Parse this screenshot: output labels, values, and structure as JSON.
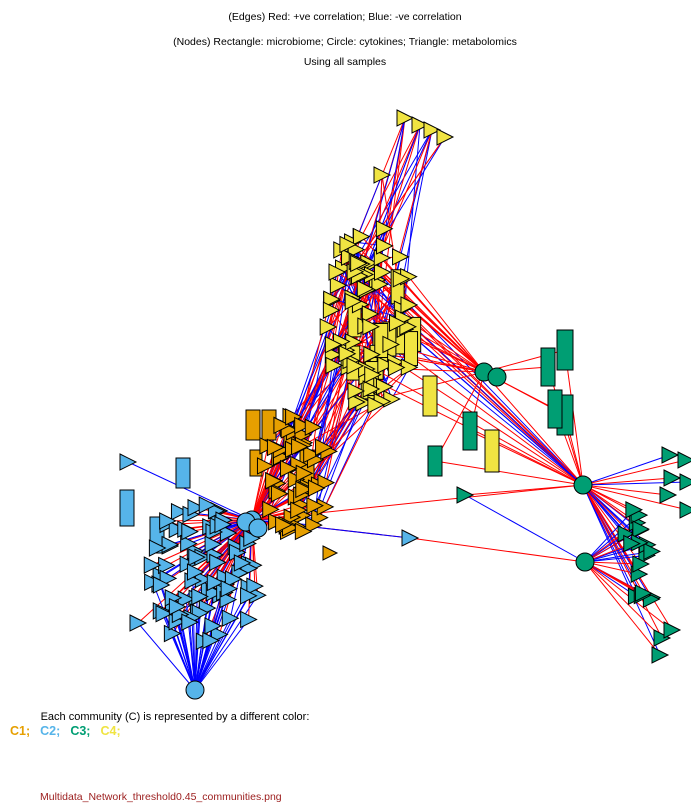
{
  "header": {
    "lines": [
      "(Edges) Red: +ve correlation; Blue: -ve correlation",
      "(Nodes) Rectangle: microbiome; Circle: cytokines; Triangle: metabolomics",
      "Using all samples"
    ]
  },
  "legend": {
    "caption": "Each community (C) is represented by a different color:",
    "communities": [
      {
        "label": "C1;",
        "color": "#E69F00"
      },
      {
        "label": "C2;",
        "color": "#56B4E9"
      },
      {
        "label": "C3;",
        "color": "#009E73"
      },
      {
        "label": "C4;",
        "color": "#F0E442"
      }
    ]
  },
  "footer": {
    "filename": "Multidata_Network_threshold0.45_communities.png"
  }
}
